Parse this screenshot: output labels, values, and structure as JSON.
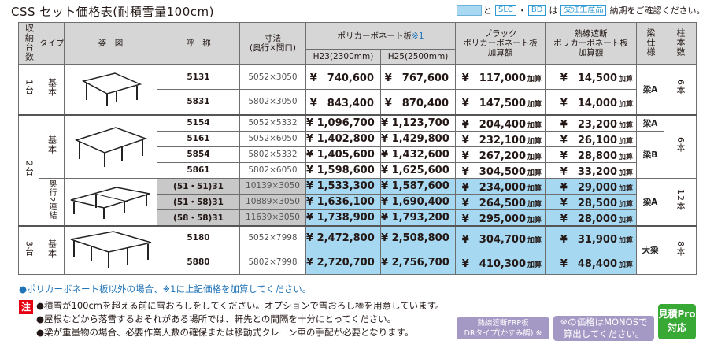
{
  "title": "CSS セット価格表(耐積雪量100cm)",
  "legend": {
    "to": "と",
    "slc": "SLC",
    "dot": "・",
    "bd": "BD",
    "wa": "は",
    "made": "受注生産品",
    "end": "納期をご確認ください。"
  },
  "headers": {
    "count": "収納台数",
    "type": "タイプ",
    "figure": "姿　図",
    "name": "呼　称",
    "size": "寸法",
    "size_sub": "(奥行×間口)",
    "poly": "ポリカーボネート板",
    "poly_mark": "※1",
    "h23": "H23(2300mm)",
    "h25": "H25(2500mm)",
    "black1": "ブラック",
    "black2": "ポリカーボネート板",
    "black3": "加算額",
    "heat1": "熱線遮断",
    "heat2": "ポリカーボネート板",
    "heat3": "加算額",
    "beam": "梁仕様",
    "pillar": "柱本数"
  },
  "add_label": "加算",
  "group1": {
    "count": "1台",
    "type": "基本",
    "beam": "梁A",
    "pillar": "6本",
    "rows": [
      {
        "code": "5131",
        "size": "5052×3050",
        "h23": "¥　740,600",
        "h25": "¥　767,600",
        "black": "¥　117,000",
        "heat": "¥　14,500"
      },
      {
        "code": "5831",
        "size": "5802×3050",
        "h23": "¥　843,400",
        "h25": "¥　870,400",
        "black": "¥　147,500",
        "heat": "¥　14,000"
      }
    ]
  },
  "group2": {
    "count": "2台",
    "type": "基本",
    "type2": "奥行2連結",
    "beam_a": "梁A",
    "beam_b": "梁B",
    "beam_c": "梁A",
    "pillar": "6本",
    "pillar2": "12本",
    "rows": [
      {
        "code": "5154",
        "size": "5052×5332",
        "h23": "¥ 1,096,700",
        "h25": "¥ 1,123,700",
        "black": "¥　204,400",
        "heat": "¥　23,200"
      },
      {
        "code": "5161",
        "size": "5052×6050",
        "h23": "¥ 1,402,800",
        "h25": "¥ 1,429,800",
        "black": "¥　232,100",
        "heat": "¥　26,100"
      },
      {
        "code": "5854",
        "size": "5802×5332",
        "h23": "¥ 1,405,600",
        "h25": "¥ 1,432,600",
        "black": "¥　267,200",
        "heat": "¥　28,800"
      },
      {
        "code": "5861",
        "size": "5802×6050",
        "h23": "¥ 1,598,600",
        "h25": "¥ 1,625,600",
        "black": "¥　304,500",
        "heat": "¥　33,200"
      }
    ],
    "rows2": [
      {
        "code": "(51・51)31",
        "size": "10139×3050",
        "h23": "¥ 1,533,300",
        "h25": "¥ 1,587,600",
        "black": "¥　234,000",
        "heat": "¥　29,000"
      },
      {
        "code": "(51・58)31",
        "size": "10889×3050",
        "h23": "¥ 1,636,100",
        "h25": "¥ 1,690,400",
        "black": "¥　264,500",
        "heat": "¥　28,500"
      },
      {
        "code": "(58・58)31",
        "size": "11639×3050",
        "h23": "¥ 1,738,900",
        "h25": "¥ 1,793,200",
        "black": "¥　295,000",
        "heat": "¥　28,000"
      }
    ]
  },
  "group3": {
    "count": "3台",
    "type": "基本",
    "beam": "大梁",
    "pillar": "8本",
    "rows": [
      {
        "code": "5180",
        "size": "5052×7998",
        "h23": "¥ 2,472,800",
        "h25": "¥ 2,508,800",
        "black": "¥　304,700",
        "heat": "¥　31,900"
      },
      {
        "code": "5880",
        "size": "5802×7998",
        "h23": "¥ 2,720,700",
        "h25": "¥ 2,756,700",
        "black": "¥　410,300",
        "heat": "¥　48,400"
      }
    ]
  },
  "note1": "●ポリカーボネート板以外の場合、※1に上記価格を加算してください。",
  "caution": "注",
  "notes": [
    "●積雪が100cmを超える前に雪おろしをしてください。オプションで雪おろし棒を用意しています。",
    "●屋根などから落雪するおそれがある場所では、軒先との間隔を十分にとってください。",
    "●梁が重量物の場合、必要作業人数の確保または移動式クレーン車の手配が必要となります。"
  ],
  "badge1": [
    "熱線遮断FRP板",
    "DRタイプ(かすみ調) ※"
  ],
  "badge2": [
    "※の価格はMONOSで",
    "算出してください。"
  ],
  "badge3": [
    "見積Pro",
    "対応"
  ]
}
